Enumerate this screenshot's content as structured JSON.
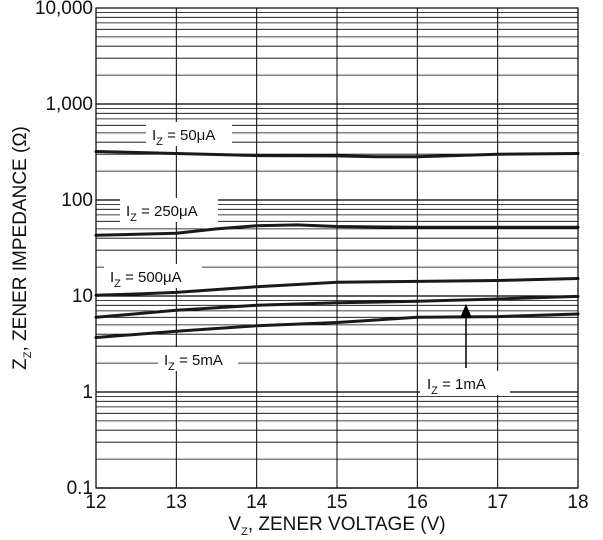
{
  "chart_data": {
    "type": "line",
    "xlabel_main": "V",
    "xlabel_sub": "Z",
    "xlabel_rest": ", ZENER VOLTAGE (V)",
    "ylabel_main": "Z",
    "ylabel_sub": "Z",
    "ylabel_rest": ", ZENER IMPEDANCE (Ω)",
    "xlim": [
      12,
      18
    ],
    "ylim": [
      0.1,
      10000
    ],
    "y_scale": "log",
    "grid": true,
    "x_ticks": [
      "12",
      "13",
      "14",
      "15",
      "16",
      "17",
      "18"
    ],
    "y_ticks": [
      "0.1",
      "1",
      "10",
      "100",
      "1,000",
      "10,000"
    ],
    "series": [
      {
        "name": "IZ = 50μA",
        "x": [
          12,
          13,
          14,
          15,
          15.5,
          16,
          17,
          18
        ],
        "y": [
          320,
          305,
          290,
          288,
          282,
          282,
          300,
          305
        ]
      },
      {
        "name": "IZ = 250μA",
        "x": [
          12,
          13,
          13.5,
          14,
          14.5,
          15,
          16,
          17,
          18
        ],
        "y": [
          43,
          45,
          50,
          54,
          55,
          53,
          52,
          52,
          52
        ]
      },
      {
        "name": "IZ = 500μA",
        "x": [
          12,
          12.5,
          13,
          14,
          15,
          16,
          17,
          18
        ],
        "y": [
          10.2,
          10.5,
          10.9,
          12.5,
          13.9,
          14.2,
          14.5,
          15.2
        ]
      },
      {
        "name": "IZ = 1mA",
        "x": [
          12,
          13,
          14,
          15,
          16,
          17,
          18
        ],
        "y": [
          6.0,
          7.1,
          8.0,
          8.5,
          8.8,
          9.3,
          9.9
        ]
      },
      {
        "name": "IZ = 5mA",
        "x": [
          12,
          13,
          14,
          15,
          16,
          17,
          18
        ],
        "y": [
          3.7,
          4.3,
          4.9,
          5.3,
          6.0,
          6.1,
          6.5
        ]
      }
    ],
    "labels": [
      {
        "main": "I",
        "sub": "Z",
        "rest": " = 50μA"
      },
      {
        "main": "I",
        "sub": "Z",
        "rest": " = 250μA"
      },
      {
        "main": "I",
        "sub": "Z",
        "rest": " = 500μA"
      },
      {
        "main": "I",
        "sub": "Z",
        "rest": " = 5mA"
      },
      {
        "main": "I",
        "sub": "Z",
        "rest": " = 1mA"
      }
    ]
  }
}
